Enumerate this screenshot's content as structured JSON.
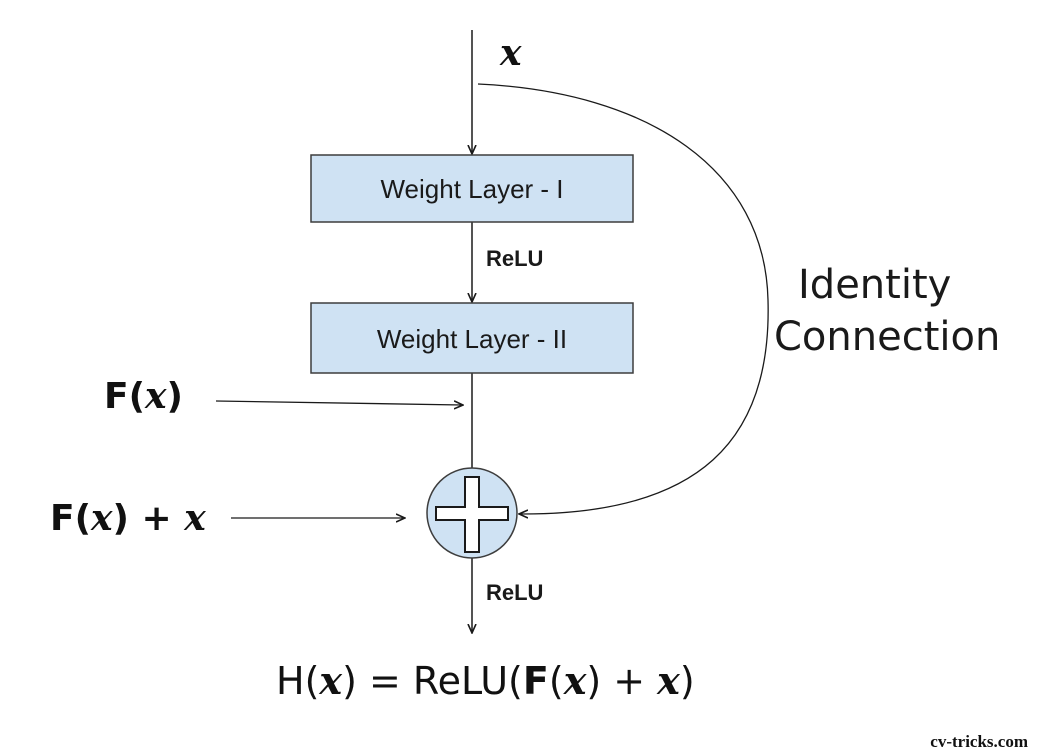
{
  "diagram": {
    "input_label": "x",
    "layer_one": "Weight Layer - I",
    "layer_two": "Weight Layer - II",
    "relu_top": "ReLU",
    "relu_bottom": "ReLU",
    "fx_label": {
      "prefix": "F(",
      "var": "x",
      "suffix": ")"
    },
    "fx_plus_x_label": {
      "prefix": "F(",
      "var": "x",
      "middle": ") + ",
      "var2": "x"
    },
    "identity_line1": "Identity",
    "identity_line2": "Connection",
    "equation": {
      "part1": "H(",
      "var1": "x",
      "part2": ") = ReLU(",
      "part3": "F",
      "part4": "(",
      "var2": "x",
      "part5": ") + ",
      "var3": "x",
      "part6": ")"
    },
    "watermark": "cv-tricks.com"
  },
  "colors": {
    "box_fill": "#cfe2f3",
    "box_stroke": "#3d3d3d",
    "line": "#1a1a1a"
  }
}
